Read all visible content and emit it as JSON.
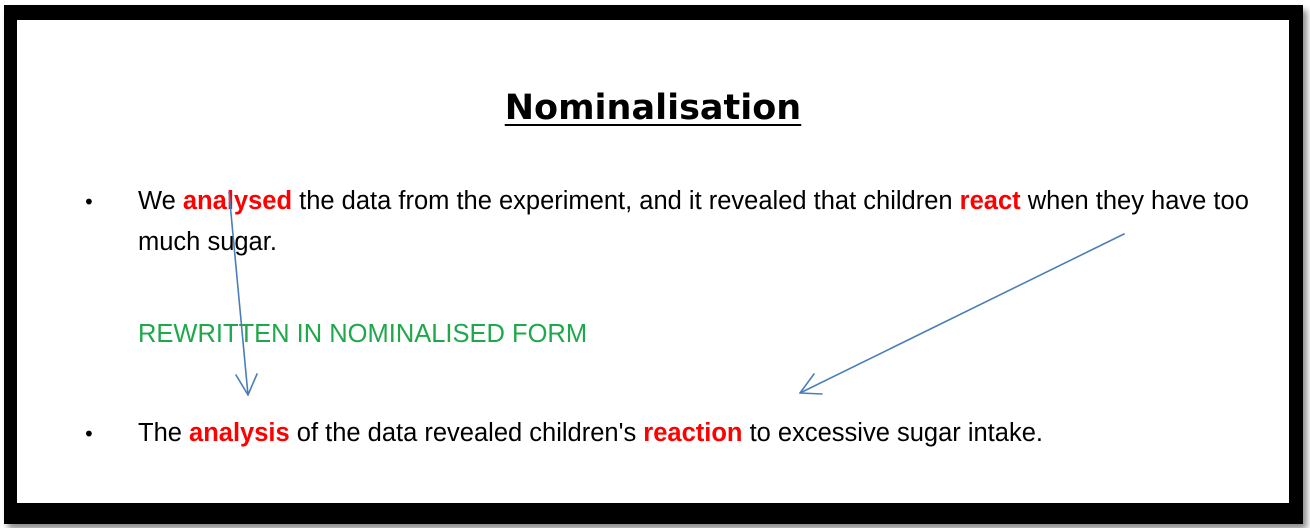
{
  "title": "Nominalisation",
  "bullet_glyph": "•",
  "sentence1": {
    "part1": "We ",
    "highlight1": "analysed",
    "part2": " the data from the experiment, and it revealed that children ",
    "highlight2": "react",
    "part3": " when they have too much sugar."
  },
  "rewritten_label": "REWRITTEN IN NOMINALISED FORM",
  "sentence2": {
    "part1": "The ",
    "highlight1": "analysis",
    "part2": " of the data revealed children's ",
    "highlight2": "reaction",
    "part3": " to excessive sugar intake."
  },
  "colors": {
    "highlight": "#ff0000",
    "rewritten_label": "#1fa84a",
    "arrow": "#4a7ebb",
    "frame": "#000000"
  },
  "icons": [
    "down-arrow-icon",
    "diagonal-arrow-icon"
  ]
}
